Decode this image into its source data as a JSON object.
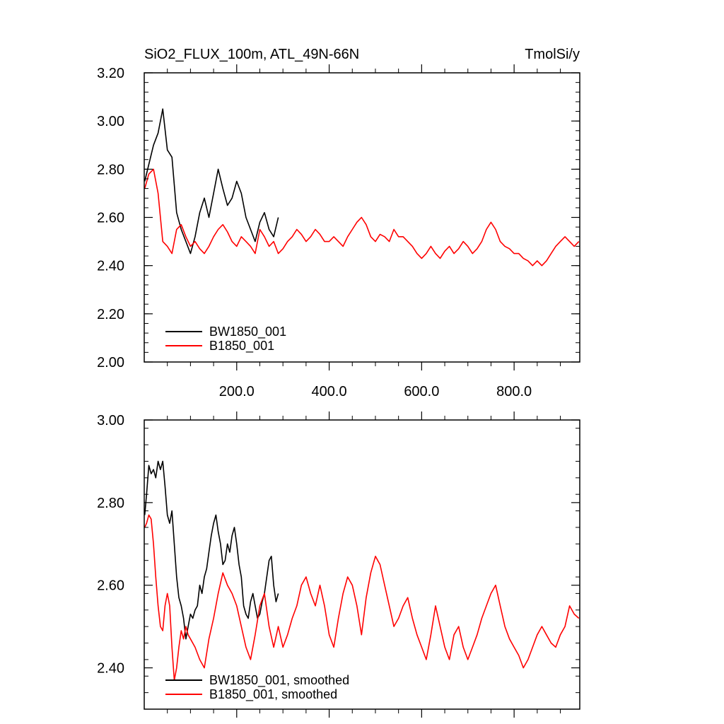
{
  "colors": {
    "bw1850": "#000000",
    "b1850": "#ff0000",
    "axis": "#000000",
    "background": "#ffffff"
  },
  "chart_data": [
    {
      "type": "line",
      "title": "SiO2_FLUX_100m, ATL_49N-66N",
      "units": "TmolSi/y",
      "xlim": [
        0,
        942
      ],
      "ylim": [
        2.0,
        3.2
      ],
      "xticks": [
        200,
        400,
        600,
        800
      ],
      "xtick_labels": [
        "200.0",
        "400.0",
        "600.0",
        "800.0"
      ],
      "yticks": [
        2.0,
        2.2,
        2.4,
        2.6,
        2.8,
        3.0,
        3.2
      ],
      "ytick_labels": [
        "2.00",
        "2.20",
        "2.40",
        "2.60",
        "2.80",
        "3.00",
        "3.20"
      ],
      "grid": false,
      "legend": "bottom-left",
      "series": [
        {
          "name": "BW1850_001",
          "color": "#000000",
          "x": [
            1,
            10,
            20,
            30,
            40,
            50,
            60,
            70,
            80,
            90,
            100,
            110,
            120,
            130,
            140,
            150,
            160,
            170,
            180,
            190,
            200,
            210,
            220,
            230,
            240,
            250,
            260,
            270,
            280,
            290
          ],
          "y": [
            2.75,
            2.82,
            2.9,
            2.95,
            3.05,
            2.88,
            2.85,
            2.62,
            2.55,
            2.5,
            2.45,
            2.52,
            2.62,
            2.68,
            2.6,
            2.7,
            2.8,
            2.72,
            2.65,
            2.68,
            2.75,
            2.7,
            2.6,
            2.55,
            2.5,
            2.58,
            2.62,
            2.55,
            2.52,
            2.6
          ]
        },
        {
          "name": "B1850_001",
          "color": "#ff0000",
          "x": [
            1,
            10,
            20,
            30,
            40,
            50,
            60,
            70,
            80,
            90,
            100,
            110,
            120,
            130,
            140,
            150,
            160,
            170,
            180,
            190,
            200,
            210,
            220,
            230,
            240,
            250,
            260,
            270,
            280,
            290,
            300,
            310,
            320,
            330,
            340,
            350,
            360,
            370,
            380,
            390,
            400,
            410,
            420,
            430,
            440,
            450,
            460,
            470,
            480,
            490,
            500,
            510,
            520,
            530,
            540,
            550,
            560,
            570,
            580,
            590,
            600,
            610,
            620,
            630,
            640,
            650,
            660,
            670,
            680,
            690,
            700,
            710,
            720,
            730,
            740,
            750,
            760,
            770,
            780,
            790,
            800,
            810,
            820,
            830,
            840,
            850,
            860,
            870,
            880,
            890,
            900,
            910,
            920,
            930,
            940
          ],
          "y": [
            2.72,
            2.78,
            2.8,
            2.7,
            2.5,
            2.48,
            2.45,
            2.55,
            2.57,
            2.52,
            2.48,
            2.5,
            2.47,
            2.45,
            2.48,
            2.52,
            2.55,
            2.57,
            2.54,
            2.5,
            2.48,
            2.52,
            2.5,
            2.48,
            2.45,
            2.55,
            2.52,
            2.48,
            2.5,
            2.45,
            2.47,
            2.5,
            2.52,
            2.55,
            2.53,
            2.5,
            2.52,
            2.55,
            2.53,
            2.5,
            2.5,
            2.52,
            2.5,
            2.48,
            2.52,
            2.55,
            2.58,
            2.6,
            2.57,
            2.52,
            2.5,
            2.53,
            2.52,
            2.5,
            2.55,
            2.52,
            2.52,
            2.5,
            2.48,
            2.45,
            2.43,
            2.45,
            2.48,
            2.45,
            2.43,
            2.46,
            2.48,
            2.45,
            2.47,
            2.5,
            2.48,
            2.45,
            2.47,
            2.5,
            2.55,
            2.58,
            2.55,
            2.5,
            2.48,
            2.47,
            2.45,
            2.45,
            2.43,
            2.42,
            2.4,
            2.42,
            2.4,
            2.42,
            2.45,
            2.48,
            2.5,
            2.52,
            2.5,
            2.48,
            2.5
          ]
        }
      ]
    },
    {
      "type": "line",
      "title": "",
      "xlim": [
        0,
        942
      ],
      "ylim": [
        2.3,
        3.0
      ],
      "xticks": [
        200,
        400,
        600,
        800
      ],
      "xtick_labels": [],
      "yticks": [
        2.4,
        2.6,
        2.8,
        3.0
      ],
      "ytick_labels": [
        "2.40",
        "2.60",
        "2.80",
        "3.00"
      ],
      "grid": false,
      "legend": "bottom-left",
      "series": [
        {
          "name": "BW1850_001, smoothed",
          "color": "#000000",
          "x": [
            1,
            5,
            10,
            15,
            20,
            25,
            30,
            35,
            40,
            45,
            50,
            55,
            60,
            65,
            70,
            75,
            80,
            85,
            90,
            95,
            100,
            105,
            110,
            115,
            120,
            125,
            130,
            135,
            140,
            145,
            150,
            155,
            160,
            165,
            170,
            175,
            180,
            185,
            190,
            195,
            200,
            205,
            210,
            215,
            220,
            225,
            230,
            235,
            240,
            245,
            250,
            255,
            260,
            265,
            270,
            275,
            280,
            285,
            290
          ],
          "y": [
            2.77,
            2.82,
            2.89,
            2.87,
            2.88,
            2.86,
            2.9,
            2.88,
            2.9,
            2.84,
            2.77,
            2.75,
            2.78,
            2.7,
            2.62,
            2.57,
            2.55,
            2.52,
            2.47,
            2.5,
            2.53,
            2.52,
            2.54,
            2.55,
            2.6,
            2.58,
            2.62,
            2.64,
            2.68,
            2.72,
            2.75,
            2.77,
            2.73,
            2.7,
            2.65,
            2.66,
            2.7,
            2.68,
            2.72,
            2.74,
            2.7,
            2.65,
            2.62,
            2.55,
            2.53,
            2.52,
            2.56,
            2.58,
            2.55,
            2.52,
            2.53,
            2.56,
            2.58,
            2.62,
            2.66,
            2.67,
            2.6,
            2.56,
            2.58
          ]
        },
        {
          "name": "B1850_001, smoothed",
          "color": "#ff0000",
          "x": [
            1,
            5,
            10,
            15,
            20,
            25,
            30,
            35,
            40,
            45,
            50,
            55,
            60,
            65,
            70,
            75,
            80,
            85,
            90,
            95,
            100,
            110,
            120,
            130,
            140,
            150,
            160,
            170,
            180,
            190,
            200,
            210,
            220,
            230,
            240,
            250,
            260,
            270,
            280,
            290,
            300,
            310,
            320,
            330,
            340,
            350,
            360,
            370,
            380,
            390,
            400,
            410,
            420,
            430,
            440,
            450,
            460,
            470,
            480,
            490,
            500,
            510,
            520,
            530,
            540,
            550,
            560,
            570,
            580,
            590,
            600,
            610,
            620,
            630,
            640,
            650,
            660,
            670,
            680,
            690,
            700,
            710,
            720,
            730,
            740,
            750,
            760,
            770,
            780,
            790,
            800,
            810,
            820,
            830,
            840,
            850,
            860,
            870,
            880,
            890,
            900,
            910,
            920,
            930,
            940
          ],
          "y": [
            2.74,
            2.75,
            2.77,
            2.76,
            2.7,
            2.62,
            2.55,
            2.5,
            2.49,
            2.55,
            2.58,
            2.55,
            2.45,
            2.37,
            2.4,
            2.45,
            2.49,
            2.47,
            2.5,
            2.48,
            2.47,
            2.45,
            2.42,
            2.4,
            2.47,
            2.52,
            2.58,
            2.63,
            2.6,
            2.58,
            2.55,
            2.5,
            2.45,
            2.42,
            2.48,
            2.55,
            2.58,
            2.5,
            2.45,
            2.5,
            2.45,
            2.48,
            2.52,
            2.55,
            2.6,
            2.62,
            2.58,
            2.55,
            2.6,
            2.55,
            2.48,
            2.45,
            2.52,
            2.58,
            2.62,
            2.6,
            2.55,
            2.48,
            2.57,
            2.63,
            2.67,
            2.65,
            2.6,
            2.55,
            2.5,
            2.52,
            2.55,
            2.57,
            2.52,
            2.48,
            2.45,
            2.42,
            2.48,
            2.55,
            2.5,
            2.45,
            2.42,
            2.48,
            2.5,
            2.45,
            2.42,
            2.45,
            2.48,
            2.52,
            2.55,
            2.58,
            2.6,
            2.55,
            2.5,
            2.47,
            2.45,
            2.43,
            2.4,
            2.42,
            2.45,
            2.48,
            2.5,
            2.48,
            2.46,
            2.45,
            2.48,
            2.5,
            2.55,
            2.53,
            2.52
          ]
        }
      ]
    }
  ]
}
